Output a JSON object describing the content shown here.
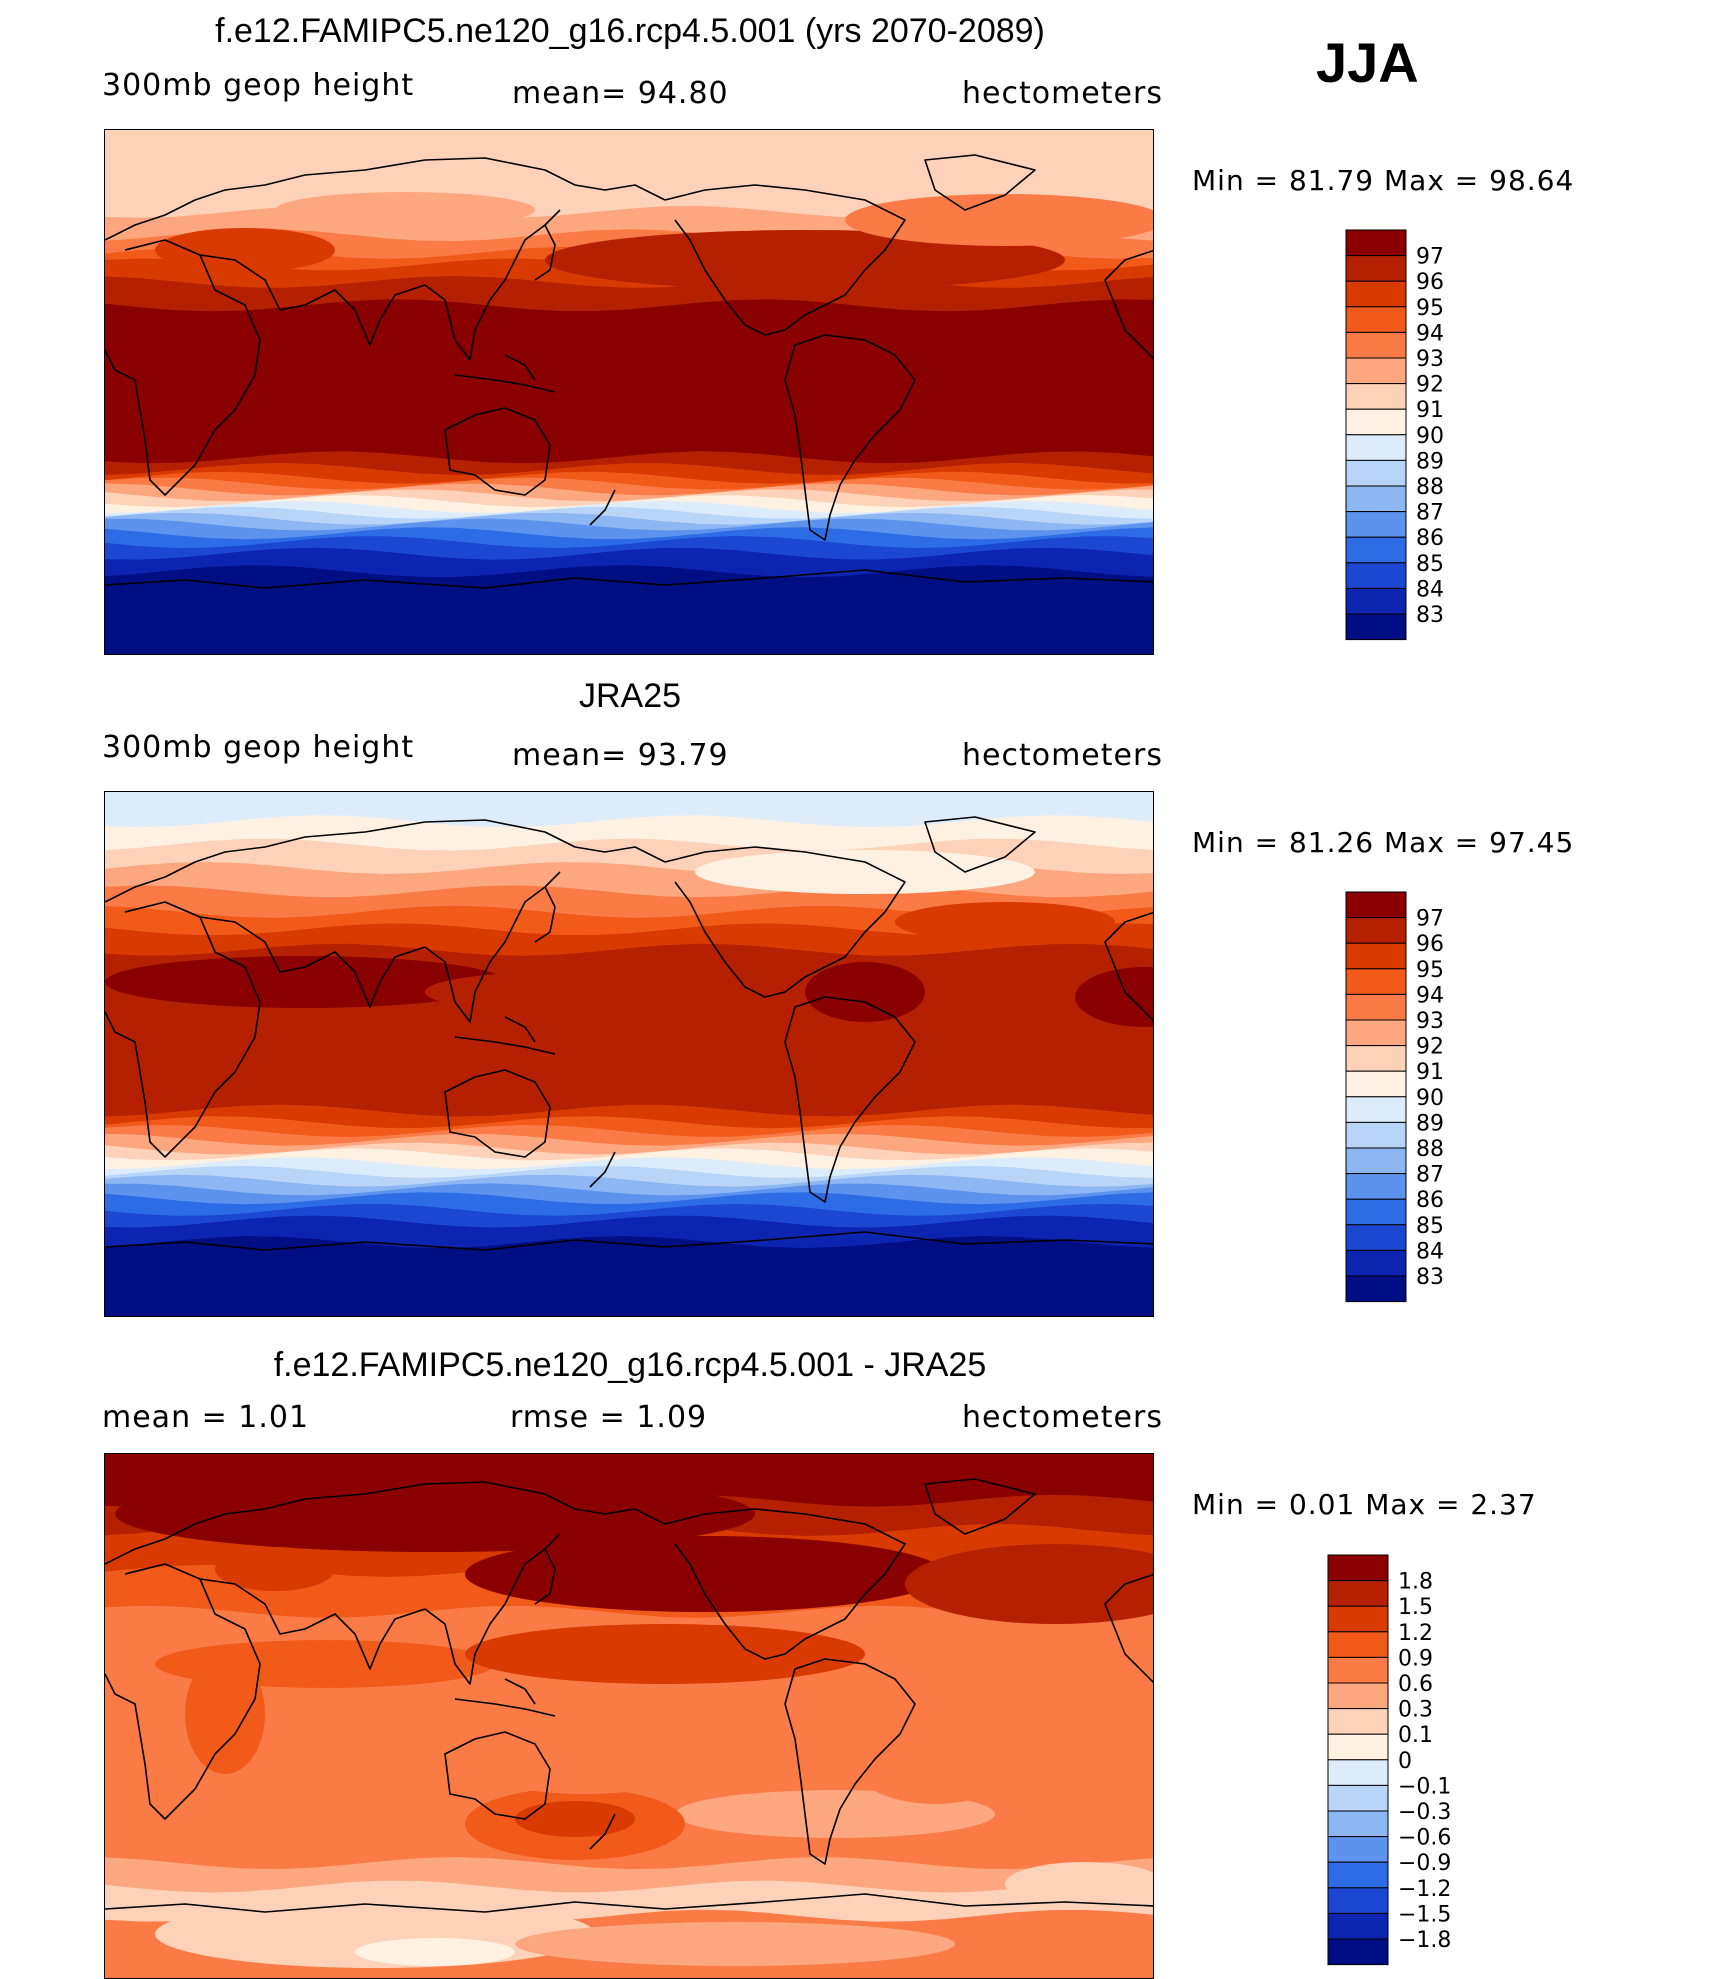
{
  "season": "JJA",
  "panels": [
    {
      "title": "f.e12.FAMIPC5.ne120_g16.rcp4.5.001 (yrs 2070-2089)",
      "left_label": "300mb  geop  height",
      "center_label": "mean=   94.80",
      "right_label": "hectometers",
      "minmax": "Min  =    81.79  Max  =    98.64",
      "field": "model",
      "colorbar": {
        "labels": [
          "97",
          "96",
          "95",
          "94",
          "93",
          "92",
          "91",
          "90",
          "89",
          "88",
          "87",
          "86",
          "85",
          "84",
          "83"
        ],
        "colors": [
          "#8a0000",
          "#b52000",
          "#d93a00",
          "#f25a1a",
          "#fa7b45",
          "#fca77f",
          "#fed2b9",
          "#fff1e2",
          "#dcecfb",
          "#b8d5f8",
          "#8db7f3",
          "#5d93ee",
          "#2e6ce6",
          "#1b47d1",
          "#0c25b0",
          "#000e84"
        ]
      }
    },
    {
      "title": "JRA25",
      "left_label": "300mb  geop  height",
      "center_label": "mean=   93.79",
      "right_label": "hectometers",
      "minmax": "Min  =    81.26  Max  =    97.45",
      "field": "obs",
      "colorbar": {
        "labels": [
          "97",
          "96",
          "95",
          "94",
          "93",
          "92",
          "91",
          "90",
          "89",
          "88",
          "87",
          "86",
          "85",
          "84",
          "83"
        ],
        "colors": [
          "#8a0000",
          "#b52000",
          "#d93a00",
          "#f25a1a",
          "#fa7b45",
          "#fca77f",
          "#fed2b9",
          "#fff1e2",
          "#dcecfb",
          "#b8d5f8",
          "#8db7f3",
          "#5d93ee",
          "#2e6ce6",
          "#1b47d1",
          "#0c25b0",
          "#000e84"
        ]
      }
    },
    {
      "title": "f.e12.FAMIPC5.ne120_g16.rcp4.5.001 - JRA25",
      "left_label": "mean  =      1.01",
      "center_label": "rmse  =      1.09",
      "right_label": "hectometers",
      "minmax": "Min  =      0.01  Max  =      2.37",
      "field": "diff",
      "colorbar": {
        "labels": [
          "1.8",
          "1.5",
          "1.2",
          "0.9",
          "0.6",
          "0.3",
          "0.1",
          "0",
          "−0.1",
          "−0.3",
          "−0.6",
          "−0.9",
          "−1.2",
          "−1.5",
          "−1.8"
        ],
        "colors": [
          "#8a0000",
          "#b52000",
          "#d93a00",
          "#f25a1a",
          "#fa7b45",
          "#fca77f",
          "#fed2b9",
          "#fff1e2",
          "#dcecfb",
          "#b8d5f8",
          "#8db7f3",
          "#5d93ee",
          "#2e6ce6",
          "#1b47d1",
          "#0c25b0",
          "#000e84"
        ]
      }
    }
  ]
}
